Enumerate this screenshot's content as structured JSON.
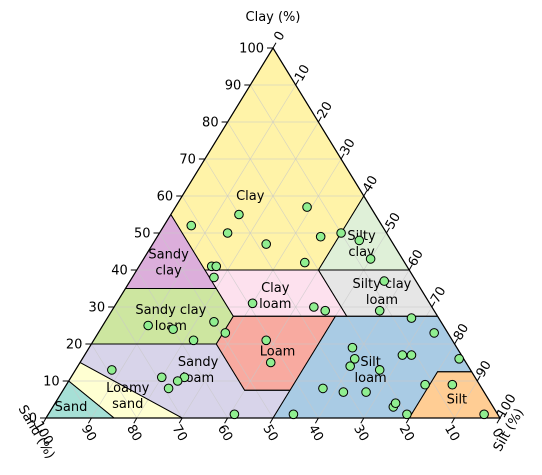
{
  "chart_data": {
    "type": "scatter",
    "subtype": "ternary-soil-texture",
    "axes": {
      "clay": {
        "label": "Clay (%)",
        "ticks": [
          0,
          10,
          20,
          30,
          40,
          50,
          60,
          70,
          80,
          90,
          100
        ]
      },
      "sand": {
        "label": "Sand (%)",
        "ticks": [
          0,
          10,
          20,
          30,
          40,
          50,
          60,
          70,
          80,
          90,
          100
        ]
      },
      "silt": {
        "label": "Silt (%)",
        "ticks": [
          0,
          10,
          20,
          30,
          40,
          50,
          60,
          70,
          80,
          90,
          100
        ]
      }
    },
    "grid": true,
    "regions": [
      {
        "name": "Clay",
        "label_lines": [
          "Clay"
        ],
        "color": "#fff3a8",
        "points": [
          [
            0,
            100,
            0
          ],
          [
            45,
            55,
            0
          ],
          [
            45,
            40,
            15
          ],
          [
            40,
            40,
            20
          ],
          [
            20,
            40,
            40
          ],
          [
            0,
            60,
            40
          ]
        ],
        "label_at": [
          25,
          60,
          15
        ]
      },
      {
        "name": "Sandy clay",
        "label_lines": [
          "Sandy",
          "clay"
        ],
        "color": "#dcaedb",
        "points": [
          [
            45,
            55,
            0
          ],
          [
            45,
            35,
            20
          ],
          [
            65,
            35,
            0
          ]
        ],
        "label_at": [
          52,
          42,
          6
        ]
      },
      {
        "name": "Silty clay",
        "label_lines": [
          "Silty",
          "clay"
        ],
        "color": "#dff0d8",
        "points": [
          [
            0,
            60,
            40
          ],
          [
            0,
            40,
            60
          ],
          [
            20,
            40,
            40
          ]
        ],
        "label_at": [
          7,
          47,
          46
        ]
      },
      {
        "name": "Sandy clay loam",
        "label_lines": [
          "Sandy clay",
          "loam"
        ],
        "color": "#cde6a0",
        "points": [
          [
            45,
            35,
            20
          ],
          [
            45,
            27.5,
            27.5
          ],
          [
            52.5,
            20,
            27.5
          ],
          [
            80,
            20,
            0
          ],
          [
            65,
            35,
            0
          ]
        ],
        "label_at": [
          59,
          27,
          14
        ]
      },
      {
        "name": "Clay loam",
        "label_lines": [
          "Clay",
          "loam"
        ],
        "color": "#fde1ee",
        "points": [
          [
            45,
            40,
            15
          ],
          [
            45,
            27.5,
            27.5
          ],
          [
            20,
            27.5,
            52.5
          ],
          [
            20,
            40,
            40
          ]
        ],
        "label_at": [
          33,
          33,
          34
        ]
      },
      {
        "name": "Silty clay loam",
        "label_lines": [
          "Silty clay",
          "loam"
        ],
        "color": "#e6e6e6",
        "points": [
          [
            20,
            40,
            40
          ],
          [
            20,
            27.5,
            52.5
          ],
          [
            0,
            27.5,
            72.5
          ],
          [
            0,
            40,
            60
          ]
        ],
        "label_at": [
          9,
          34,
          57
        ]
      },
      {
        "name": "Loam",
        "label_lines": [
          "Loam"
        ],
        "color": "#f8aaa0",
        "points": [
          [
            45,
            27.5,
            27.5
          ],
          [
            52.5,
            20,
            27.5
          ],
          [
            52.5,
            7.5,
            40
          ],
          [
            42.5,
            7.5,
            50
          ],
          [
            22.5,
            27.5,
            50
          ]
        ],
        "label_at": [
          40,
          18,
          42
        ]
      },
      {
        "name": "Silt loam",
        "label_lines": [
          "Silt",
          "loam"
        ],
        "color": "#a9cbe4",
        "points": [
          [
            50,
            0,
            50
          ],
          [
            22.5,
            27.5,
            50
          ],
          [
            0,
            27.5,
            72.5
          ],
          [
            0,
            12.5,
            87.5
          ],
          [
            7.5,
            12.5,
            80
          ],
          [
            20,
            0,
            80
          ]
        ],
        "label_at": [
          22,
          13,
          65
        ]
      },
      {
        "name": "Sandy loam",
        "label_lines": [
          "Sandy",
          "loam"
        ],
        "color": "#d8d4ea",
        "points": [
          [
            52.5,
            20,
            27.5
          ],
          [
            80,
            20,
            0
          ],
          [
            85,
            15,
            0
          ],
          [
            70,
            0,
            30
          ],
          [
            50,
            0,
            50
          ],
          [
            42.5,
            7.5,
            50
          ],
          [
            52.5,
            7.5,
            40
          ]
        ],
        "label_at": [
          60,
          13,
          27
        ]
      },
      {
        "name": "Loamy sand",
        "label_lines": [
          "Loamy",
          "sand"
        ],
        "color": "#ffffd2",
        "points": [
          [
            85,
            15,
            0
          ],
          [
            90,
            10,
            0
          ],
          [
            85,
            0,
            15
          ],
          [
            70,
            0,
            30
          ]
        ],
        "label_at": [
          79,
          6,
          15
        ]
      },
      {
        "name": "Sand",
        "label_lines": [
          "Sand"
        ],
        "color": "#a6e0d6",
        "points": [
          [
            100,
            0,
            0
          ],
          [
            90,
            10,
            0
          ],
          [
            85,
            0,
            15
          ]
        ],
        "label_at": [
          93,
          3,
          4
        ]
      },
      {
        "name": "Silt",
        "label_lines": [
          "Silt"
        ],
        "color": "#ffcd94",
        "points": [
          [
            20,
            0,
            80
          ],
          [
            7.5,
            12.5,
            80
          ],
          [
            0,
            12.5,
            87.5
          ],
          [
            0,
            0,
            100
          ]
        ],
        "label_at": [
          7,
          5,
          88
        ]
      }
    ],
    "points": [
      [
        30,
        55,
        15
      ],
      [
        42,
        52,
        6
      ],
      [
        35,
        50,
        15
      ],
      [
        28,
        47,
        25
      ],
      [
        15,
        49,
        36
      ],
      [
        10,
        50,
        40
      ],
      [
        14,
        57,
        29
      ],
      [
        22,
        42,
        36
      ],
      [
        43,
        41,
        16
      ],
      [
        42,
        41,
        17
      ],
      [
        44,
        38,
        18
      ],
      [
        7,
        48,
        45
      ],
      [
        7,
        43,
        50
      ],
      [
        7,
        37,
        56
      ],
      [
        39,
        31,
        30
      ],
      [
        26,
        30,
        44
      ],
      [
        24,
        29,
        47
      ],
      [
        12,
        29,
        59
      ],
      [
        6,
        27,
        67
      ],
      [
        3,
        23,
        74
      ],
      [
        65,
        25,
        10
      ],
      [
        60,
        24,
        16
      ],
      [
        50,
        26,
        24
      ],
      [
        49,
        23,
        28
      ],
      [
        57,
        21,
        22
      ],
      [
        41,
        21,
        38
      ],
      [
        43,
        15,
        42
      ],
      [
        23,
        19,
        58
      ],
      [
        13,
        17,
        70
      ],
      [
        24,
        16,
        60
      ],
      [
        26,
        14,
        60
      ],
      [
        20,
        13,
        67
      ],
      [
        11,
        17,
        72
      ],
      [
        1,
        16,
        83
      ],
      [
        79,
        13,
        8
      ],
      [
        69,
        11,
        20
      ],
      [
        64,
        11,
        25
      ],
      [
        66,
        10,
        24
      ],
      [
        69,
        8,
        23
      ],
      [
        58,
        1,
        41
      ],
      [
        45,
        1,
        54
      ],
      [
        35,
        8,
        57
      ],
      [
        31,
        7,
        62
      ],
      [
        26,
        7,
        67
      ],
      [
        22,
        3,
        75
      ],
      [
        21,
        4,
        75
      ],
      [
        20,
        1,
        79
      ],
      [
        12,
        9,
        79
      ],
      [
        6,
        9,
        85
      ],
      [
        3,
        1,
        96
      ]
    ],
    "point_color": "#90ee90",
    "point_edge": "#000000"
  }
}
